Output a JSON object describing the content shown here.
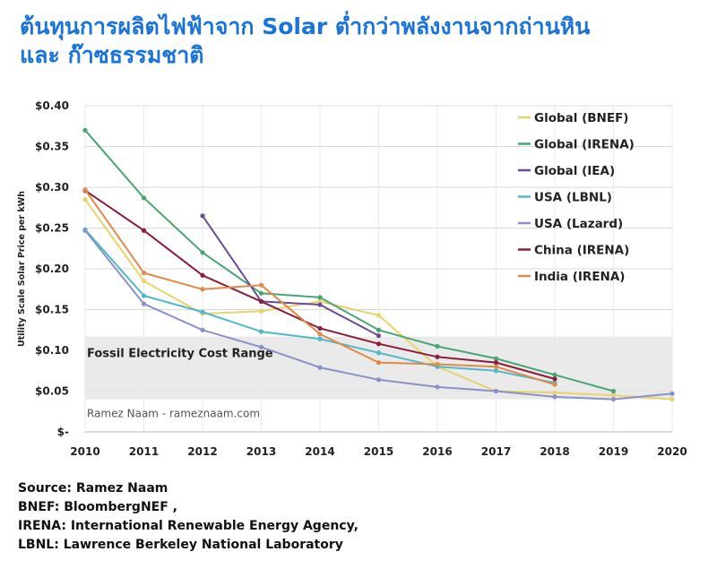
{
  "title_lines": [
    "ต้นทุนการผลิตไฟฟ้าจาก Solar ต่ำกว่าพลังงานจากถ่านหิน",
    "และ ก๊าซธรรมชาติ"
  ],
  "notes": {
    "source": "Source: Ramez Naam",
    "lines": [
      "BNEF: BloombergNEF ,",
      "IRENA: International Renewable Energy Agency,",
      "LBNL: Lawrence Berkeley National Laboratory"
    ]
  },
  "colors": {
    "title": "#1a73d9",
    "band": "#e6e6e6",
    "grid": "#d9d9d9"
  },
  "chart_data": {
    "type": "line",
    "title": "",
    "xlabel": "",
    "ylabel": "Utility Scale Solar Price per kWh",
    "x": [
      2010,
      2011,
      2012,
      2013,
      2014,
      2015,
      2016,
      2017,
      2018,
      2019,
      2020
    ],
    "x_tick_labels": [
      "2010",
      "2011",
      "2012",
      "2013",
      "2014",
      "2015",
      "2016",
      "2017",
      "2018",
      "2019",
      "2020"
    ],
    "ylim": [
      0,
      0.4
    ],
    "y_ticks": [
      0,
      0.05,
      0.1,
      0.15,
      0.2,
      0.25,
      0.3,
      0.35,
      0.4
    ],
    "y_tick_labels": [
      "$-",
      "$0.05",
      "$0.10",
      "$0.15",
      "$0.20",
      "$0.25",
      "$0.30",
      "$0.35",
      "$0.40"
    ],
    "grid": true,
    "legend_position": "top-right",
    "band": {
      "label": "Fossil Electricity Cost Range",
      "ymin": 0.04,
      "ymax": 0.117
    },
    "watermark": "Ramez Naam - rameznaam.com",
    "series": [
      {
        "name": "Global (BNEF)",
        "color": "#e8d36b",
        "x": [
          2010,
          2011,
          2012,
          2013,
          2014,
          2015,
          2016,
          2017,
          2018,
          2019,
          2020
        ],
        "y": [
          0.285,
          0.185,
          0.145,
          0.148,
          0.16,
          0.143,
          0.08,
          0.05,
          0.048,
          0.045,
          0.04
        ]
      },
      {
        "name": "Global (IRENA)",
        "color": "#4aa574",
        "x": [
          2010,
          2011,
          2012,
          2013,
          2014,
          2015,
          2016,
          2017,
          2018,
          2019
        ],
        "y": [
          0.37,
          0.287,
          0.22,
          0.17,
          0.165,
          0.125,
          0.105,
          0.09,
          0.07,
          0.05
        ]
      },
      {
        "name": "Global (IEA)",
        "color": "#6a4b94",
        "x": [
          2012,
          2013,
          2014,
          2015
        ],
        "y": [
          0.265,
          0.16,
          0.156,
          0.118
        ]
      },
      {
        "name": "USA (LBNL)",
        "color": "#4fb8c9",
        "x": [
          2010,
          2011,
          2012,
          2013,
          2014,
          2015,
          2016,
          2017,
          2018
        ],
        "y": [
          0.248,
          0.167,
          0.147,
          0.123,
          0.114,
          0.097,
          0.08,
          0.075,
          0.06
        ]
      },
      {
        "name": "USA (Lazard)",
        "color": "#8a92c8",
        "x": [
          2010,
          2011,
          2012,
          2013,
          2014,
          2015,
          2016,
          2017,
          2018,
          2019,
          2020
        ],
        "y": [
          0.247,
          0.157,
          0.125,
          0.104,
          0.079,
          0.064,
          0.055,
          0.05,
          0.043,
          0.04,
          0.047
        ]
      },
      {
        "name": "China (IRENA)",
        "color": "#8b1d3c",
        "x": [
          2010,
          2011,
          2012,
          2013,
          2014,
          2015,
          2016,
          2017,
          2018
        ],
        "y": [
          0.296,
          0.247,
          0.192,
          0.16,
          0.127,
          0.108,
          0.092,
          0.085,
          0.065
        ]
      },
      {
        "name": "India (IRENA)",
        "color": "#e08a4a",
        "x": [
          2010,
          2011,
          2012,
          2013,
          2014,
          2015,
          2016,
          2017,
          2018
        ],
        "y": [
          0.297,
          0.195,
          0.175,
          0.18,
          0.12,
          0.085,
          0.083,
          0.08,
          0.058
        ]
      }
    ]
  }
}
